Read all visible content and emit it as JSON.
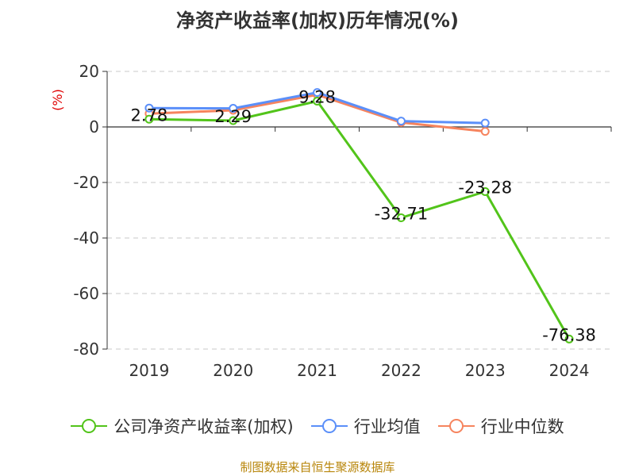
{
  "chart_data": {
    "type": "line",
    "title": "净资产收益率(加权)历年情况(%)",
    "ylabel": "(%)",
    "xlabel": "",
    "categories": [
      "2019",
      "2020",
      "2021",
      "2022",
      "2023",
      "2024"
    ],
    "ylim": [
      -80,
      20
    ],
    "yticks": [
      20,
      0,
      -20,
      -40,
      -60,
      -80
    ],
    "grid": true,
    "legend_position": "bottom",
    "series": [
      {
        "name": "公司净资产收益率(加权)",
        "color": "#52c41a",
        "values": [
          2.78,
          2.29,
          9.28,
          -32.71,
          -23.28,
          -76.38
        ],
        "labels": [
          "2.78",
          "2.29",
          "9.28",
          "-32.71",
          "-23.28",
          "-76.38"
        ]
      },
      {
        "name": "行业均值",
        "color": "#5b8ff9",
        "values": [
          6.8,
          6.7,
          12.4,
          2.1,
          1.4,
          null
        ]
      },
      {
        "name": "行业中位数",
        "color": "#f6845e",
        "values": [
          4.8,
          6.0,
          11.6,
          1.6,
          -1.6,
          null
        ]
      }
    ]
  },
  "source": "制图数据来自恒生聚源数据库"
}
